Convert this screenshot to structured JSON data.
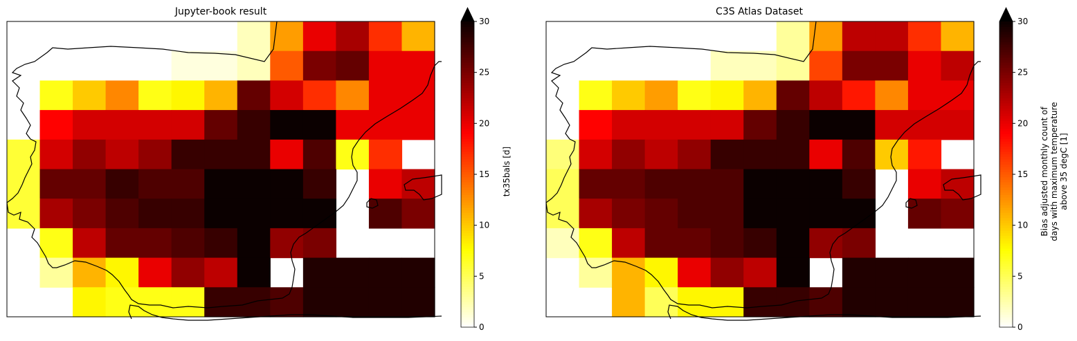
{
  "chart_data": [
    {
      "type": "heatmap",
      "title": "Jupyter-book result",
      "colorbar": {
        "label": "tx35bals [d]",
        "range": [
          0,
          30
        ],
        "ticks": [
          0,
          5,
          10,
          15,
          20,
          25,
          30
        ],
        "extend": "max",
        "colormap": "hot_r"
      },
      "grid": [
        [
          null,
          null,
          null,
          null,
          null,
          null,
          null,
          2,
          12,
          20,
          23,
          17,
          11
        ],
        [
          null,
          null,
          null,
          null,
          null,
          1,
          1,
          2,
          15,
          25,
          26,
          20,
          20
        ],
        [
          null,
          7,
          10,
          13,
          7,
          8,
          11,
          26,
          21,
          17,
          13,
          20,
          20
        ],
        [
          null,
          19,
          21,
          21,
          21,
          21,
          26,
          28,
          30,
          30,
          20,
          20,
          20
        ],
        [
          6,
          21,
          24,
          22,
          24,
          28,
          28,
          28,
          20,
          27,
          7,
          17,
          null
        ],
        [
          6,
          26,
          26,
          28,
          27,
          27,
          30,
          30,
          30,
          28,
          null,
          20,
          22
        ],
        [
          6,
          23,
          25,
          27,
          28,
          28,
          30,
          30,
          30,
          30,
          null,
          27,
          25
        ],
        [
          null,
          7,
          22,
          26,
          26,
          27,
          28,
          30,
          24,
          25,
          null,
          null,
          null
        ],
        [
          null,
          3,
          11,
          8,
          20,
          24,
          22,
          30,
          null,
          29,
          29,
          29,
          29
        ],
        [
          null,
          null,
          8,
          7,
          7,
          7,
          28,
          28,
          27,
          29,
          29,
          29,
          29
        ]
      ]
    },
    {
      "type": "heatmap",
      "title": "C3S Atlas Dataset",
      "colorbar": {
        "label": [
          "Bias adjusted monthly count of",
          "days with maximum temperature",
          "above 35 degC [1]"
        ],
        "range": [
          0,
          30
        ],
        "ticks": [
          0,
          5,
          10,
          15,
          20,
          25,
          30
        ],
        "extend": "max",
        "colormap": "hot_r"
      },
      "grid": [
        [
          null,
          null,
          null,
          null,
          null,
          null,
          null,
          3,
          12,
          22,
          22,
          17,
          11
        ],
        [
          null,
          null,
          null,
          null,
          null,
          2,
          2,
          3,
          16,
          25,
          25,
          20,
          22
        ],
        [
          null,
          7,
          10,
          12,
          7,
          8,
          11,
          26,
          22,
          18,
          13,
          20,
          20
        ],
        [
          null,
          19,
          21,
          21,
          21,
          21,
          26,
          28,
          30,
          30,
          21,
          21,
          21
        ],
        [
          4,
          21,
          24,
          22,
          24,
          28,
          28,
          28,
          20,
          27,
          10,
          18,
          null
        ],
        [
          5,
          26,
          26,
          27,
          27,
          27,
          30,
          30,
          30,
          28,
          null,
          20,
          22
        ],
        [
          5,
          23,
          25,
          26,
          27,
          27,
          30,
          30,
          30,
          30,
          null,
          26,
          25
        ],
        [
          2,
          7,
          22,
          26,
          26,
          27,
          28,
          30,
          24,
          25,
          null,
          null,
          null
        ],
        [
          null,
          3,
          11,
          8,
          20,
          24,
          22,
          30,
          null,
          29,
          29,
          29,
          29
        ],
        [
          null,
          null,
          11,
          5,
          8,
          8,
          28,
          28,
          27,
          29,
          29,
          29,
          29
        ]
      ]
    }
  ]
}
